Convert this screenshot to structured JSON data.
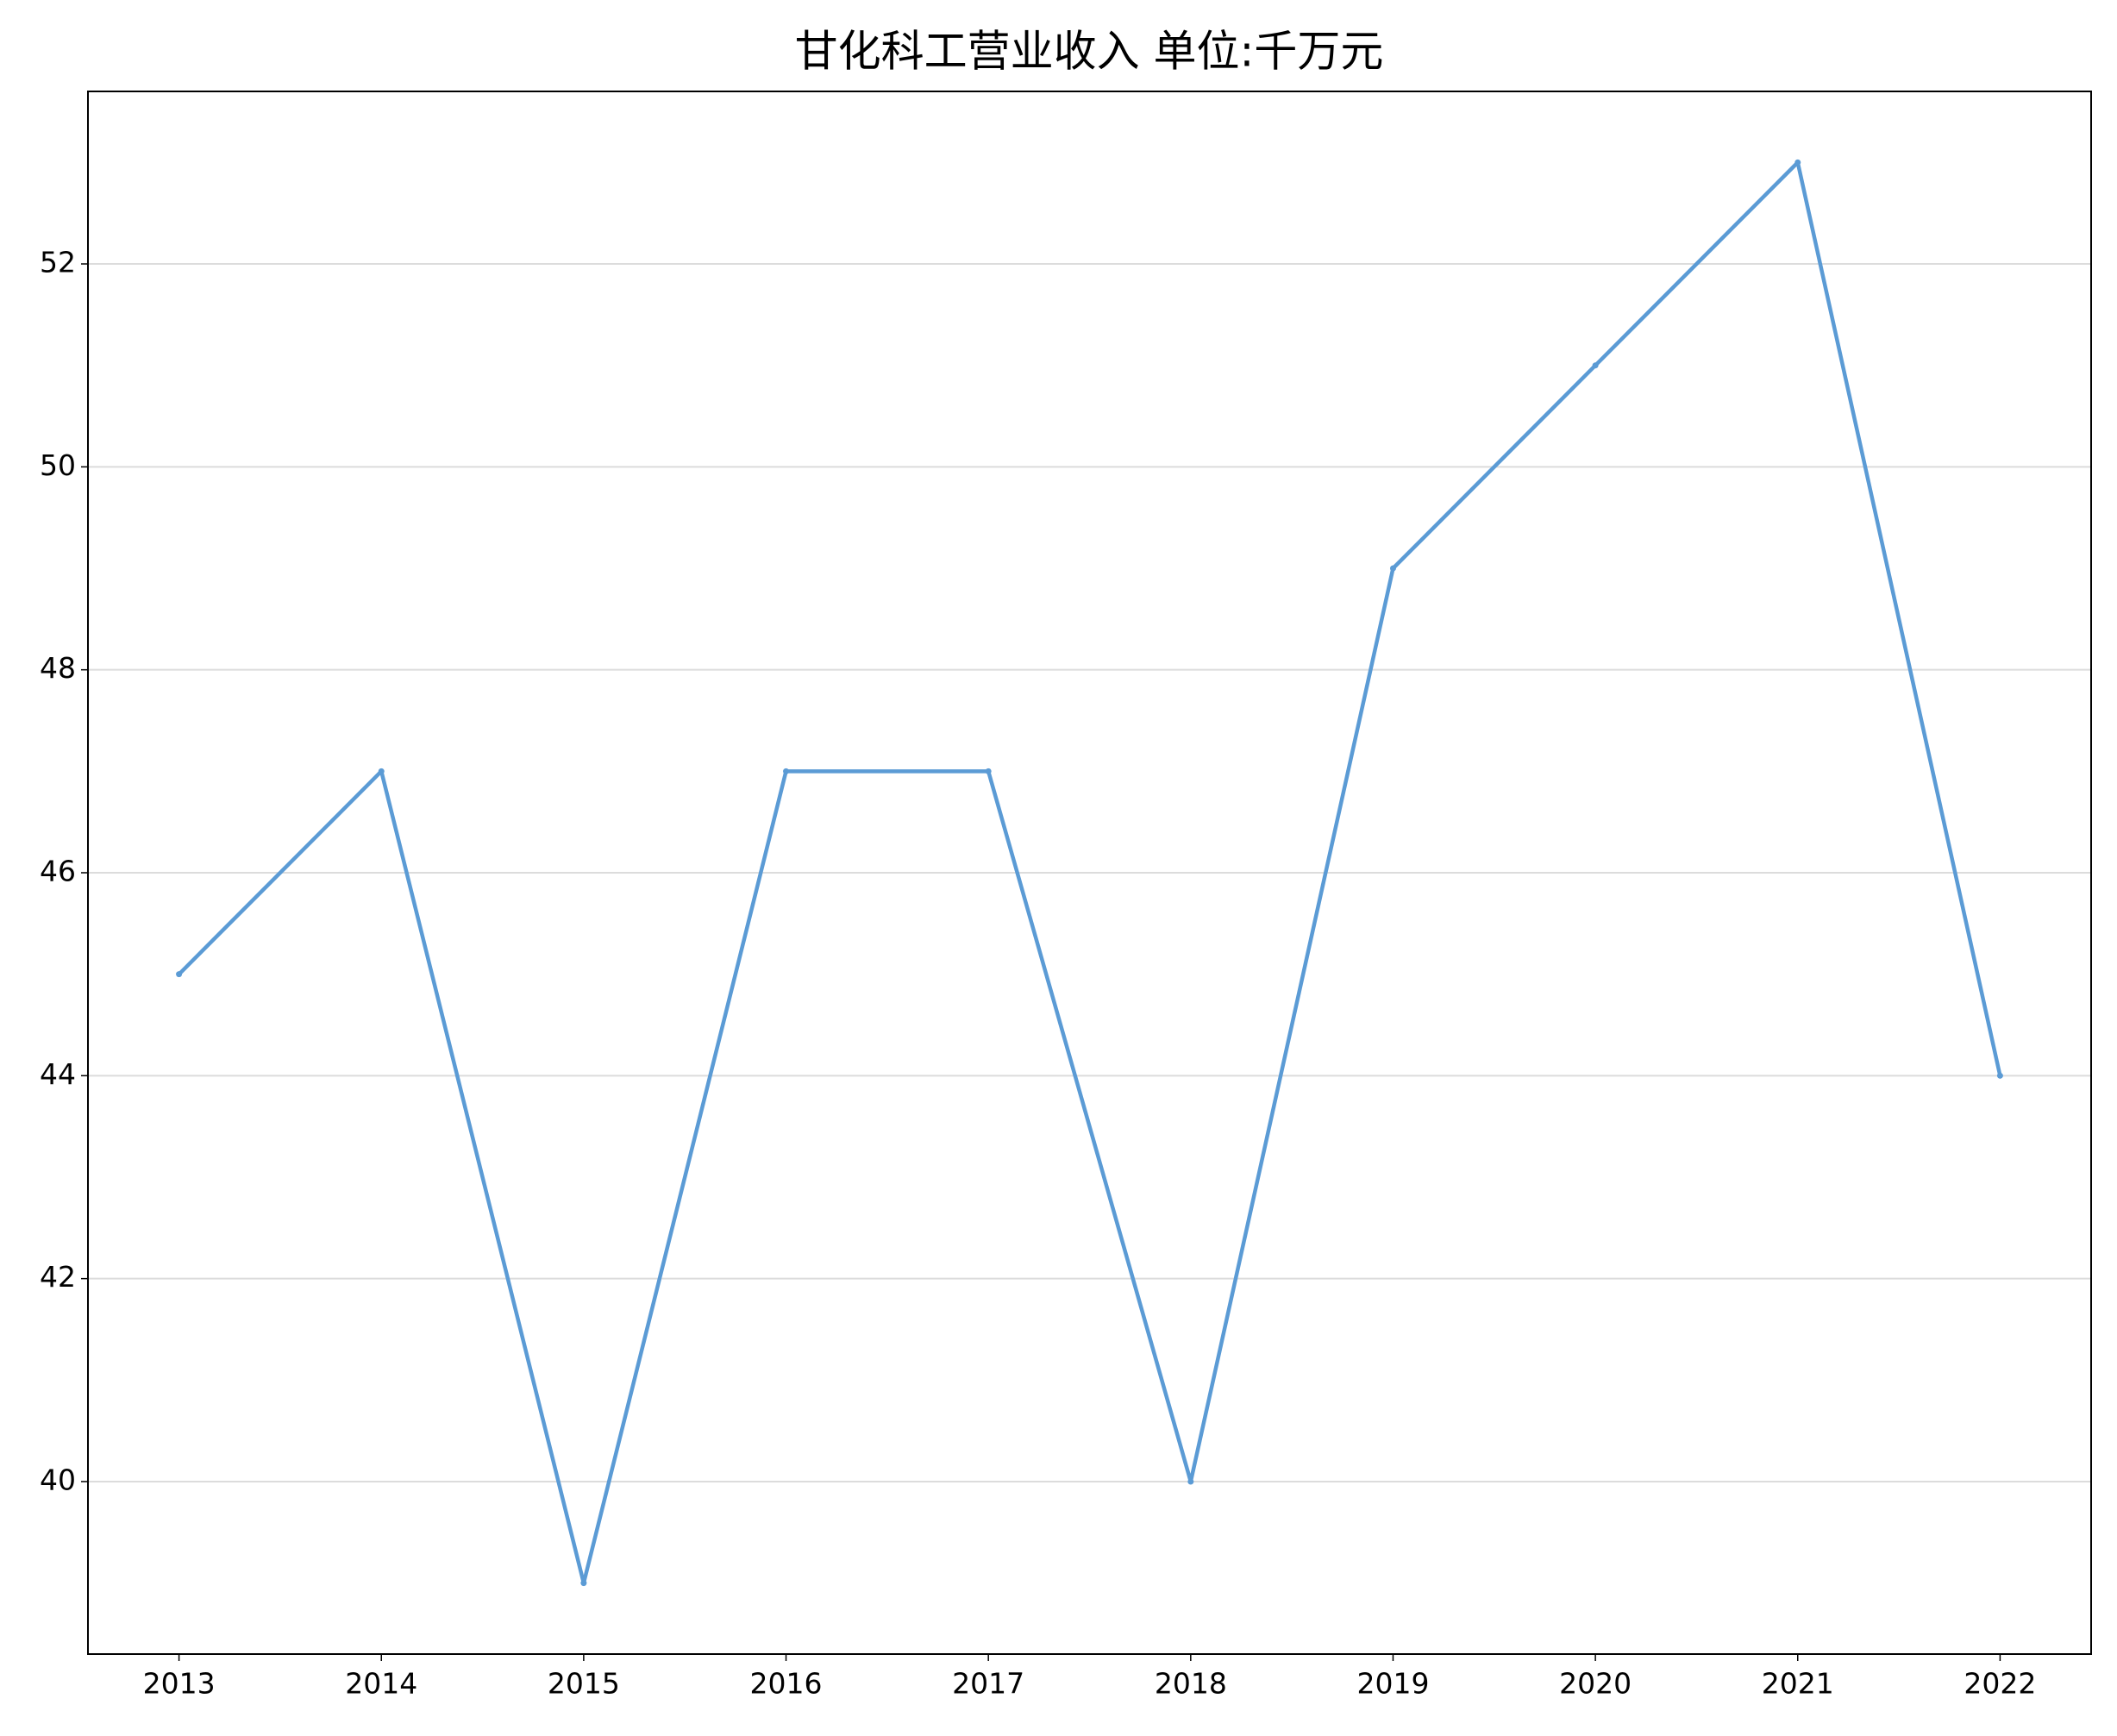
{
  "chart_data": {
    "type": "line",
    "title": "甘化科工营业收入 单位:千万元",
    "x": [
      2013,
      2014,
      2015,
      2016,
      2017,
      2018,
      2019,
      2020,
      2021,
      2022
    ],
    "xlim": [
      2012.55,
      2022.45
    ],
    "xticks": [
      2013,
      2014,
      2015,
      2016,
      2017,
      2018,
      2019,
      2020,
      2021,
      2022
    ],
    "series": [
      {
        "color": "#5b9bd5",
        "values": [
          45,
          47,
          39,
          47,
          47,
          40,
          49,
          51,
          53,
          44
        ]
      }
    ],
    "ylim": [
      38.3,
      53.7
    ],
    "yticks": [
      40,
      42,
      44,
      46,
      48,
      50,
      52
    ],
    "grid": true
  }
}
